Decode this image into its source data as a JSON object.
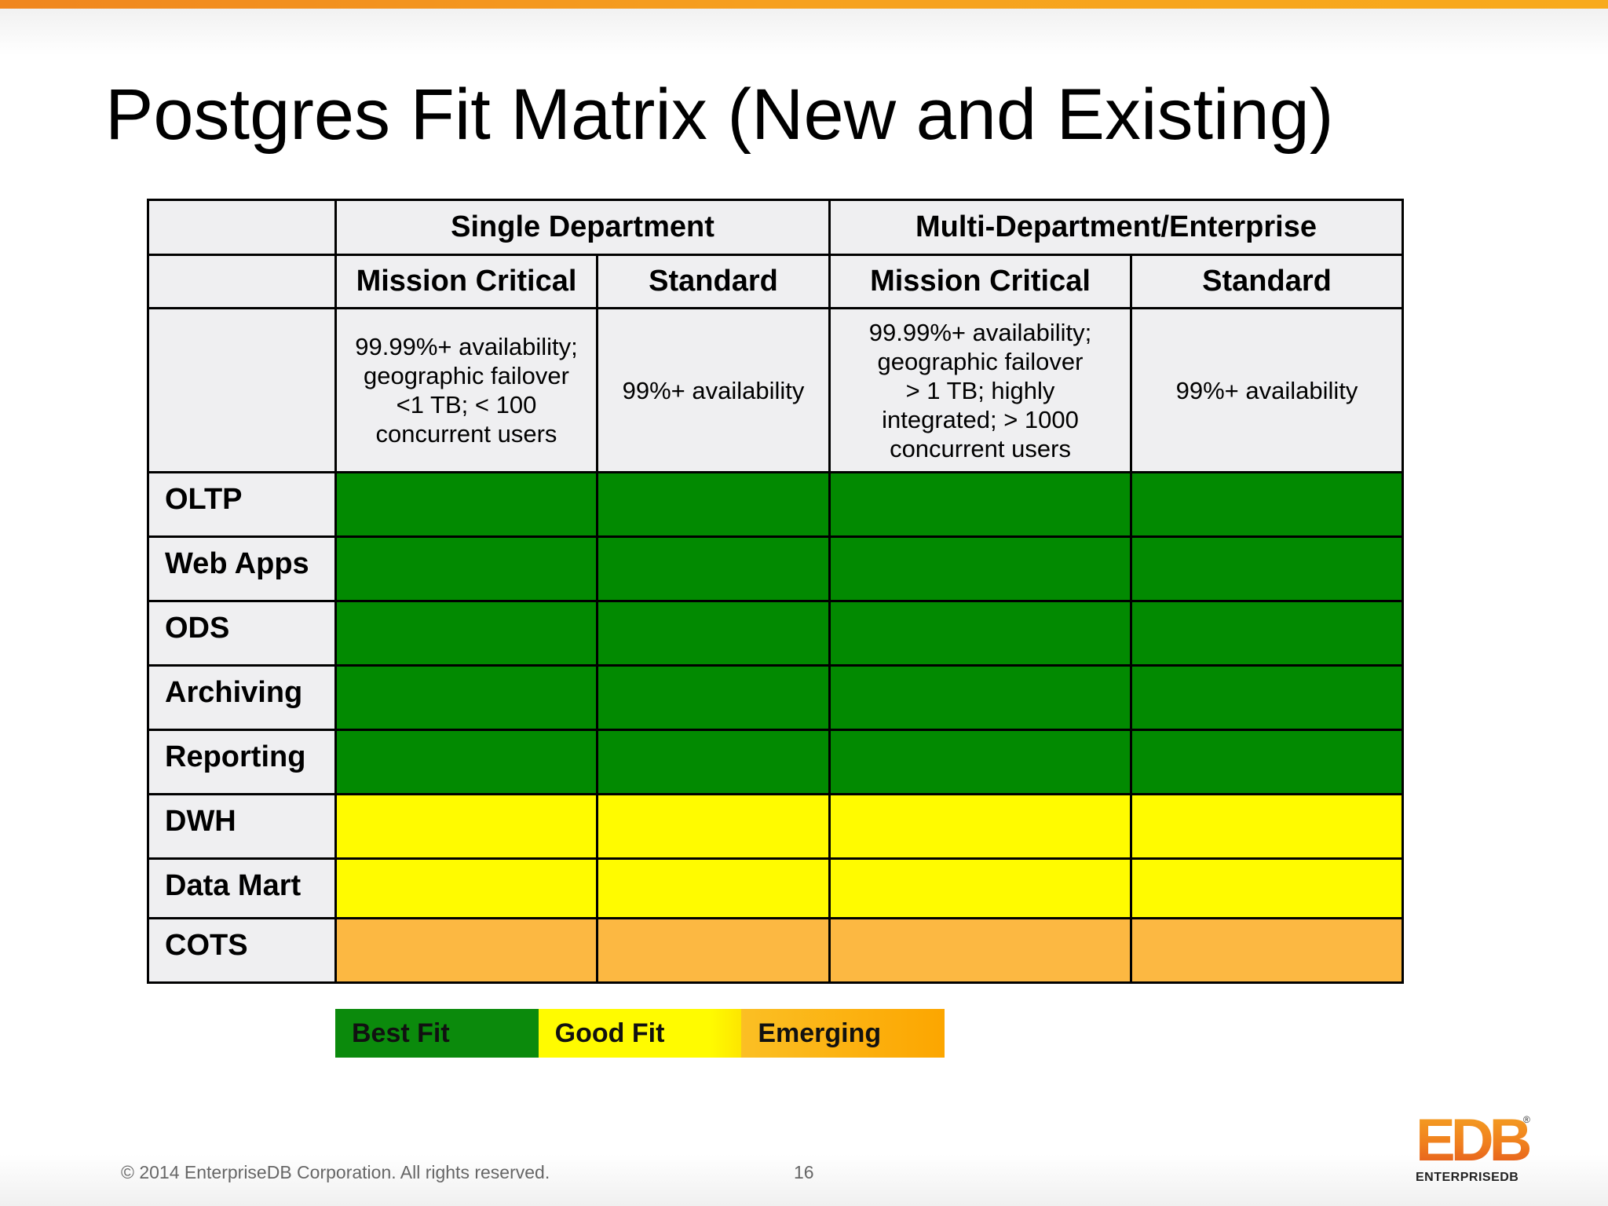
{
  "slide": {
    "title": "Postgres Fit Matrix (New and Existing)",
    "page_number": "16",
    "copyright": "© 2014 EnterpriseDB Corporation. All rights reserved."
  },
  "matrix": {
    "groups": [
      "Single Department",
      "Multi-Department/Enterprise"
    ],
    "subheaders": [
      "Mission Critical",
      "Standard",
      "Mission Critical",
      "Standard"
    ],
    "descriptions": [
      "99.99%+ availability;\ngeographic failover\n<1 TB; < 100\nconcurrent users",
      "99%+ availability",
      "99.99%+ availability;\ngeographic failover\n> 1 TB; highly\nintegrated; > 1000\nconcurrent users",
      "99%+ availability"
    ],
    "rows": [
      {
        "label": "OLTP",
        "fit": [
          "best",
          "best",
          "best",
          "best"
        ]
      },
      {
        "label": "Web Apps",
        "fit": [
          "best",
          "best",
          "best",
          "best"
        ]
      },
      {
        "label": "ODS",
        "fit": [
          "best",
          "best",
          "best",
          "best"
        ]
      },
      {
        "label": "Archiving",
        "fit": [
          "best",
          "best",
          "best",
          "best"
        ]
      },
      {
        "label": "Reporting",
        "fit": [
          "best",
          "best",
          "best",
          "best"
        ]
      },
      {
        "label": "DWH",
        "fit": [
          "good",
          "good",
          "good",
          "good"
        ]
      },
      {
        "label": "Data Mart",
        "fit": [
          "good",
          "good",
          "good",
          "good"
        ]
      },
      {
        "label": "COTS",
        "fit": [
          "emerging",
          "emerging",
          "emerging",
          "emerging"
        ]
      }
    ]
  },
  "legend": {
    "best": "Best Fit",
    "good": "Good Fit",
    "emerging": "Emerging"
  },
  "colors": {
    "best": "#028a01",
    "good": "#fffb00",
    "emerging": "#fcb842",
    "accent_orange": "#f6a11e"
  },
  "logo": {
    "mark": "EDB",
    "wordmark": "ENTERPRISEDB",
    "registered": "®"
  }
}
